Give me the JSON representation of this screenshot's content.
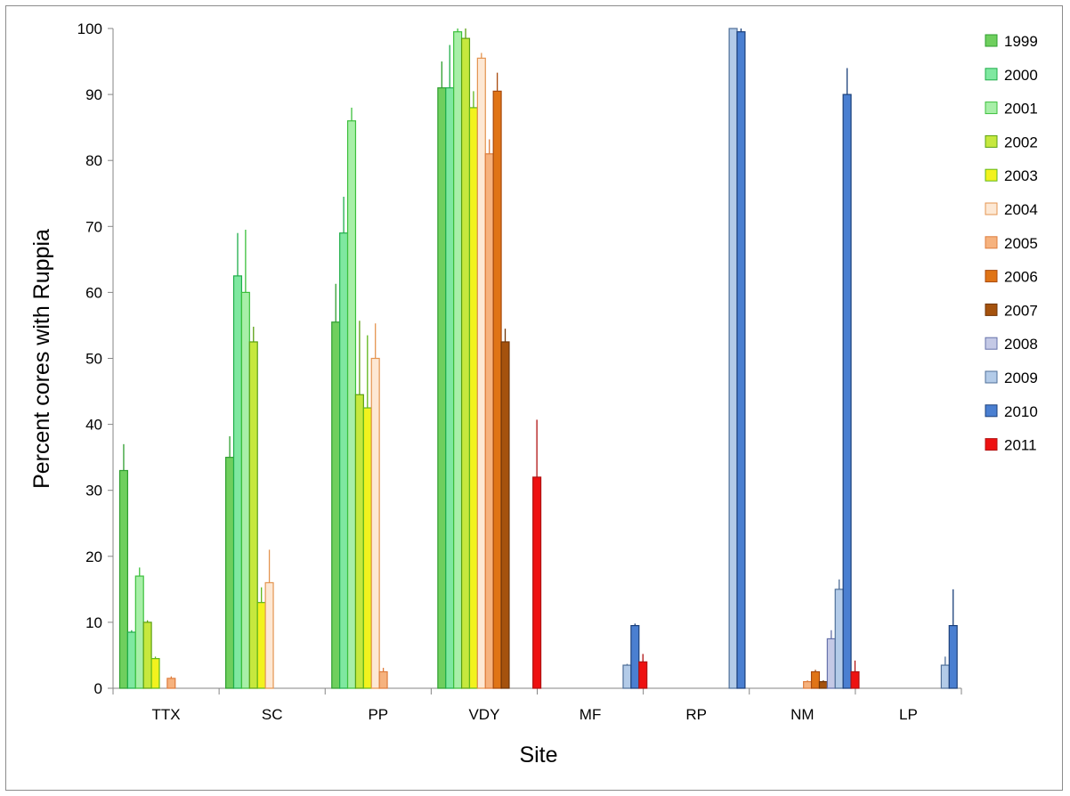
{
  "chart_data": {
    "type": "bar",
    "title": "",
    "xlabel": "Site",
    "ylabel": "Percent cores with Ruppia",
    "ylim": [
      0,
      100
    ],
    "yticks": [
      0,
      10,
      20,
      30,
      40,
      50,
      60,
      70,
      80,
      90,
      100
    ],
    "grid": false,
    "legend_position": "right",
    "error_bars": true,
    "categories": [
      "TTX",
      "SC",
      "PP",
      "VDY",
      "MF",
      "RP",
      "NM",
      "LP"
    ],
    "series": [
      {
        "name": "1999",
        "fill": "#6fcf5e",
        "stroke": "#2e9e2e",
        "values": [
          33,
          35,
          55.5,
          91,
          0,
          0,
          0,
          0
        ],
        "errors": [
          4,
          3.2,
          5.8,
          4,
          0,
          0,
          0,
          0
        ]
      },
      {
        "name": "2000",
        "fill": "#7fe8a0",
        "stroke": "#1fae4a",
        "values": [
          8.5,
          62.5,
          69,
          91,
          0,
          0,
          0,
          0
        ],
        "errors": [
          0.3,
          6.5,
          5.5,
          6.5,
          0,
          0,
          0,
          0
        ]
      },
      {
        "name": "2001",
        "fill": "#a8efa8",
        "stroke": "#3bbf3b",
        "values": [
          17,
          60,
          86,
          99.5,
          0,
          0,
          0,
          0
        ],
        "errors": [
          1.3,
          9.5,
          2,
          0.5,
          0,
          0,
          0,
          0
        ]
      },
      {
        "name": "2002",
        "fill": "#c6e83e",
        "stroke": "#5aa012",
        "values": [
          10,
          52.5,
          44.5,
          98.5,
          0,
          0,
          0,
          0
        ],
        "errors": [
          0.3,
          2.3,
          11.2,
          1.5,
          0,
          0,
          0,
          0
        ]
      },
      {
        "name": "2003",
        "fill": "#f2f21e",
        "stroke": "#5fb61a",
        "values": [
          4.5,
          13,
          42.5,
          88,
          0,
          0,
          0,
          0
        ],
        "errors": [
          0.3,
          2.3,
          11,
          2.5,
          0,
          0,
          0,
          0
        ]
      },
      {
        "name": "2004",
        "fill": "#fde8d4",
        "stroke": "#e49450",
        "values": [
          0,
          16,
          50,
          95.5,
          0,
          0,
          0,
          0
        ],
        "errors": [
          0,
          5,
          5.3,
          0.8,
          0,
          0,
          0,
          0
        ]
      },
      {
        "name": "2005",
        "fill": "#f6b27e",
        "stroke": "#de7c3c",
        "values": [
          1.5,
          0,
          2.5,
          81,
          0,
          0,
          1,
          0
        ],
        "errors": [
          0.3,
          0,
          0.6,
          2.2,
          0,
          0,
          0.2,
          0
        ]
      },
      {
        "name": "2006",
        "fill": "#e07416",
        "stroke": "#a84a0e",
        "values": [
          0,
          0,
          0,
          90.5,
          0,
          0,
          2.5,
          0
        ],
        "errors": [
          0,
          0,
          0,
          2.8,
          0,
          0,
          0.3,
          0
        ]
      },
      {
        "name": "2007",
        "fill": "#a5520d",
        "stroke": "#6f3508",
        "values": [
          0,
          0,
          0,
          52.5,
          0,
          0,
          1,
          0
        ],
        "errors": [
          0,
          0,
          0,
          2,
          0,
          0,
          0.2,
          0
        ]
      },
      {
        "name": "2008",
        "fill": "#c4c9e6",
        "stroke": "#6571aa",
        "values": [
          0,
          0,
          0,
          0,
          0,
          0,
          7.5,
          0
        ],
        "errors": [
          0,
          0,
          0,
          0,
          0,
          0,
          1.3,
          0
        ]
      },
      {
        "name": "2009",
        "fill": "#b3cbe8",
        "stroke": "#4f6f98",
        "values": [
          0,
          0,
          0,
          0,
          3.5,
          100,
          15,
          3.5
        ],
        "errors": [
          0,
          0,
          0,
          0,
          0.2,
          0,
          1.5,
          1.3
        ]
      },
      {
        "name": "2010",
        "fill": "#4a7fd1",
        "stroke": "#1a3f7a",
        "values": [
          0,
          0,
          0,
          0,
          9.5,
          99.5,
          90,
          9.5
        ],
        "errors": [
          0,
          0,
          0,
          0,
          0.3,
          0.5,
          4,
          5.5
        ]
      },
      {
        "name": "2011",
        "fill": "#ee1111",
        "stroke": "#b01212",
        "values": [
          0,
          0,
          0,
          32,
          4,
          0,
          2.5,
          0
        ],
        "errors": [
          0,
          0,
          0,
          8.7,
          1.2,
          0,
          1.7,
          0
        ]
      }
    ]
  }
}
